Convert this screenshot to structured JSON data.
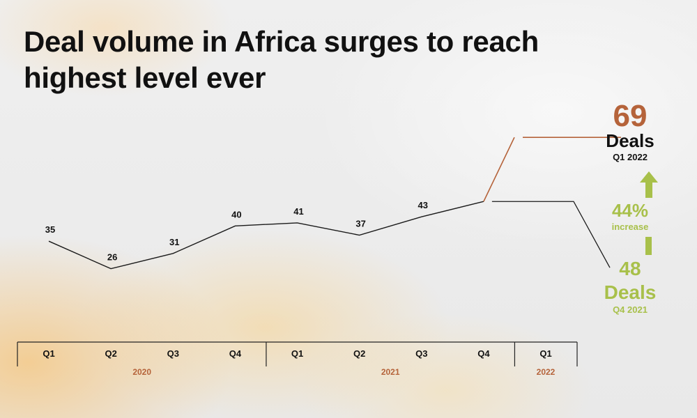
{
  "title": "Deal volume in Africa surges to reach highest level ever",
  "colors": {
    "line": "#1a1a1a",
    "highlight": "#b5633a",
    "accent": "#a8c04a",
    "year": "#b5633a"
  },
  "chart_data": {
    "type": "line",
    "title": "Deal volume in Africa surges to reach highest level ever",
    "categories": [
      "Q1",
      "Q2",
      "Q3",
      "Q4",
      "Q1",
      "Q2",
      "Q3",
      "Q4",
      "Q1"
    ],
    "years": [
      {
        "label": "2020",
        "span": [
          0,
          3
        ]
      },
      {
        "label": "2021",
        "span": [
          4,
          7
        ]
      },
      {
        "label": "2022",
        "span": [
          8,
          8
        ]
      }
    ],
    "series": [
      {
        "values": [
          35,
          26,
          31,
          40,
          41,
          37,
          43,
          48,
          69
        ]
      }
    ],
    "data_labels": [
      "35",
      "26",
      "31",
      "40",
      "41",
      "37",
      "43"
    ],
    "ylim": [
      20,
      72
    ],
    "grid": false
  },
  "callouts": {
    "top": {
      "value": "69",
      "unit": "Deals",
      "period": "Q1 2022"
    },
    "change": {
      "value": "44%",
      "label": "increase"
    },
    "bottom": {
      "value": "48",
      "unit": "Deals",
      "period": "Q4 2021"
    }
  }
}
